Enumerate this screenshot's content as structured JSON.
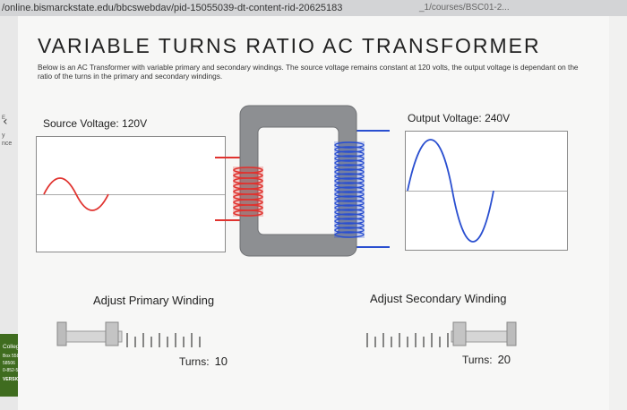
{
  "browser": {
    "url": "/online.bismarckstate.edu/bbcswebdav/pid-15055039-dt-content-rid-20625183",
    "url_tail": "_1/courses/BSC01-2..."
  },
  "app": {
    "title": "VARIABLE TURNS RATIO AC TRANSFORMER",
    "description": "Below is an AC Transformer with variable primary and secondary windings. The source voltage remains constant at 120 volts, the output voltage is dependant on the ratio of the turns in the primary and secondary windings."
  },
  "source": {
    "label": "Source Voltage: 120V",
    "volts": 120,
    "wave_color": "#e0332f"
  },
  "output": {
    "label": "Output Voltage: 240V",
    "volts": 240,
    "wave_color": "#2a4fd0"
  },
  "primary": {
    "label": "Adjust Primary Winding",
    "turns_label": "Turns:",
    "turns": "10",
    "coil_color": "#e0332f"
  },
  "secondary": {
    "label": "Adjust Secondary Winding",
    "turns_label": "Turns:",
    "turns": "20",
    "coil_color": "#2a4fd0"
  },
  "sidebar": {
    "partial_texts": [
      "E",
      "y",
      "nce"
    ],
    "college_label": "College",
    "college_lines": [
      "Box 5587",
      "58506",
      "0-852-5685",
      "VERSION"
    ]
  }
}
